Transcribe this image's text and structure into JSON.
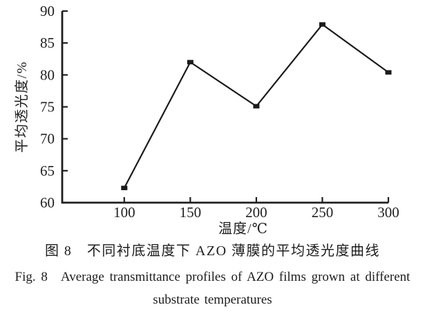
{
  "figure": {
    "caption_zh": "图 8　不同衬底温度下 AZO 薄膜的平均透光度曲线",
    "caption_en_line1": "Fig. 8　Average transmittance profiles of AZO films grown at different",
    "caption_en_line2": "substrate temperatures"
  },
  "chart_data": {
    "type": "line",
    "series_name": "average-transmittance",
    "x": [
      100,
      150,
      200,
      250,
      300
    ],
    "y": [
      62.3,
      82.0,
      75.1,
      87.9,
      80.4
    ],
    "xticks": [
      "100",
      "150",
      "200",
      "250",
      "300"
    ],
    "yticks": [
      "60",
      "65",
      "70",
      "75",
      "80",
      "85",
      "90"
    ],
    "xtick_values": [
      100,
      150,
      200,
      250,
      300
    ],
    "ytick_values": [
      60,
      65,
      70,
      75,
      80,
      85,
      90
    ],
    "xlim": [
      53,
      300
    ],
    "ylim": [
      60,
      90
    ],
    "xlabel": "温度/℃",
    "ylabel": "平均透光度/%",
    "grid": false,
    "legend": "none",
    "marker": "filled-square",
    "line_color": "#1b1b1b",
    "axis_color": "#1f1f1f",
    "text_color": "#1f1f1f",
    "background": "#ffffff"
  }
}
